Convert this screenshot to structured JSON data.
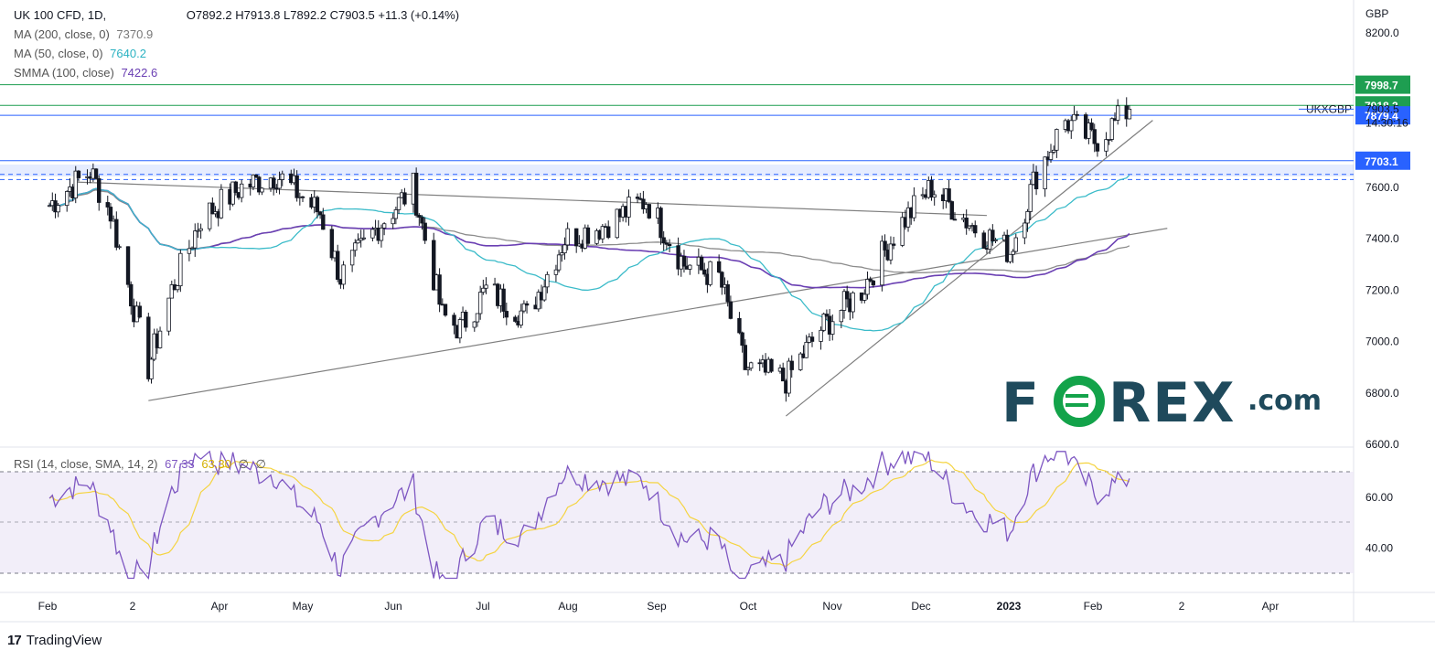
{
  "header": {
    "symbol": "UK 100 CFD, 1D,",
    "ohlc": "O7892.2  H7913.8  L7892.2  C7903.5  +11.3 (+0.14%)"
  },
  "indicators": {
    "ma200": {
      "label": "MA (200, close, 0)",
      "value": "7370.9"
    },
    "ma50": {
      "label": "MA (50, close, 0)",
      "value": "7640.2"
    },
    "smma100": {
      "label": "SMMA (100, close)",
      "value": "7422.6"
    },
    "rsi": {
      "label": "RSI (14, close, SMA, 14, 2)",
      "value": "67.33",
      "sma": "63.30",
      "extra1": "∅",
      "extra2": "∅"
    }
  },
  "price_scale": {
    "currency": "GBP",
    "ticks": [
      "8200.0",
      "7600.0",
      "7400.0",
      "7200.0",
      "7000.0",
      "6800.0",
      "6600.0"
    ],
    "badges": [
      {
        "text": "7998.7",
        "bg": "#1e9e51"
      },
      {
        "text": "7918.3",
        "bg": "#1e9e51"
      },
      {
        "text": "7879.4",
        "bg": "#2962ff"
      },
      {
        "text": "7703.1",
        "bg": "#2962ff"
      }
    ],
    "last_price": "7903.5",
    "countdown": "14:30:16",
    "series_label": "UKXGBP"
  },
  "rsi_scale": {
    "ticks": [
      "60.00",
      "40.00"
    ]
  },
  "time_axis": {
    "labels": [
      "Feb",
      "2",
      "Apr",
      "May",
      "Jun",
      "Jul",
      "Aug",
      "Sep",
      "Oct",
      "Nov",
      "Dec",
      "2023",
      "Feb",
      "2",
      "Apr"
    ]
  },
  "watermark": {
    "text": "FOREX.com",
    "color": "#1f4a5c",
    "accent": "#13a34a"
  },
  "footer": {
    "brand": "TradingView"
  },
  "colors": {
    "ma50": "#3bbbc9",
    "ma200": "#8c8c8c",
    "smma": "#6a3fb3",
    "rsi": "#7e57c2",
    "rsi_sma": "#f5d442",
    "up": "#ffffff",
    "down": "#131722",
    "hline_green": "#1e9e51",
    "hline_blue": "#2962ff"
  },
  "chart_data": [
    {
      "type": "candlestick",
      "title": "UK 100 CFD, 1D",
      "ylabel": "GBP",
      "ylim": [
        6600,
        8250
      ],
      "x": [
        "2022-02",
        "2022-03",
        "2022-04",
        "2022-05",
        "2022-06",
        "2022-07",
        "2022-08",
        "2022-09",
        "2022-10",
        "2022-11",
        "2022-12",
        "2023-01",
        "2023-02"
      ],
      "close_path": [
        [
          "2022-02-01",
          7530
        ],
        [
          "2022-02-08",
          7600
        ],
        [
          "2022-02-15",
          7660
        ],
        [
          "2022-02-22",
          7500
        ],
        [
          "2022-03-07",
          6900
        ],
        [
          "2022-03-15",
          7200
        ],
        [
          "2022-03-25",
          7480
        ],
        [
          "2022-04-08",
          7600
        ],
        [
          "2022-04-20",
          7650
        ],
        [
          "2022-05-05",
          7500
        ],
        [
          "2022-05-12",
          7250
        ],
        [
          "2022-05-25",
          7450
        ],
        [
          "2022-06-06",
          7600
        ],
        [
          "2022-06-16",
          7100
        ],
        [
          "2022-06-22",
          7050
        ],
        [
          "2022-07-01",
          7200
        ],
        [
          "2022-07-15",
          7100
        ],
        [
          "2022-07-28",
          7400
        ],
        [
          "2022-08-10",
          7450
        ],
        [
          "2022-08-25",
          7550
        ],
        [
          "2022-09-07",
          7300
        ],
        [
          "2022-09-19",
          7250
        ],
        [
          "2022-09-28",
          6900
        ],
        [
          "2022-10-12",
          6850
        ],
        [
          "2022-10-24",
          7050
        ],
        [
          "2022-11-07",
          7200
        ],
        [
          "2022-11-20",
          7450
        ],
        [
          "2022-12-01",
          7600
        ],
        [
          "2022-12-15",
          7450
        ],
        [
          "2022-12-28",
          7350
        ],
        [
          "2023-01-06",
          7650
        ],
        [
          "2023-01-16",
          7860
        ],
        [
          "2023-01-26",
          7780
        ],
        [
          "2023-02-02",
          7850
        ],
        [
          "2023-02-07",
          7903.5
        ]
      ],
      "trendlines": [
        {
          "from": [
            "2022-03-07",
            6770
          ],
          "to": [
            "2023-02-20",
            7440
          ]
        },
        {
          "from": [
            "2022-02-10",
            7620
          ],
          "to": [
            "2022-12-20",
            7490
          ]
        },
        {
          "from": [
            "2022-10-12",
            6710
          ],
          "to": [
            "2023-02-15",
            7860
          ]
        }
      ],
      "horizontal_lines": [
        7998.7,
        7918.3,
        7879.4,
        7703.1,
        7650,
        7630
      ],
      "series": [
        {
          "name": "MA (50, close, 0)",
          "last": 7640.2
        },
        {
          "name": "MA (200, close, 0)",
          "last": 7370.9
        },
        {
          "name": "SMMA (100, close)",
          "last": 7422.6
        }
      ]
    },
    {
      "type": "line",
      "title": "RSI (14, close, SMA, 14, 2)",
      "ylim": [
        25,
        80
      ],
      "levels": [
        70,
        50,
        30
      ],
      "series": [
        {
          "name": "RSI",
          "last": 67.33
        },
        {
          "name": "SMA",
          "last": 63.3
        }
      ]
    }
  ]
}
